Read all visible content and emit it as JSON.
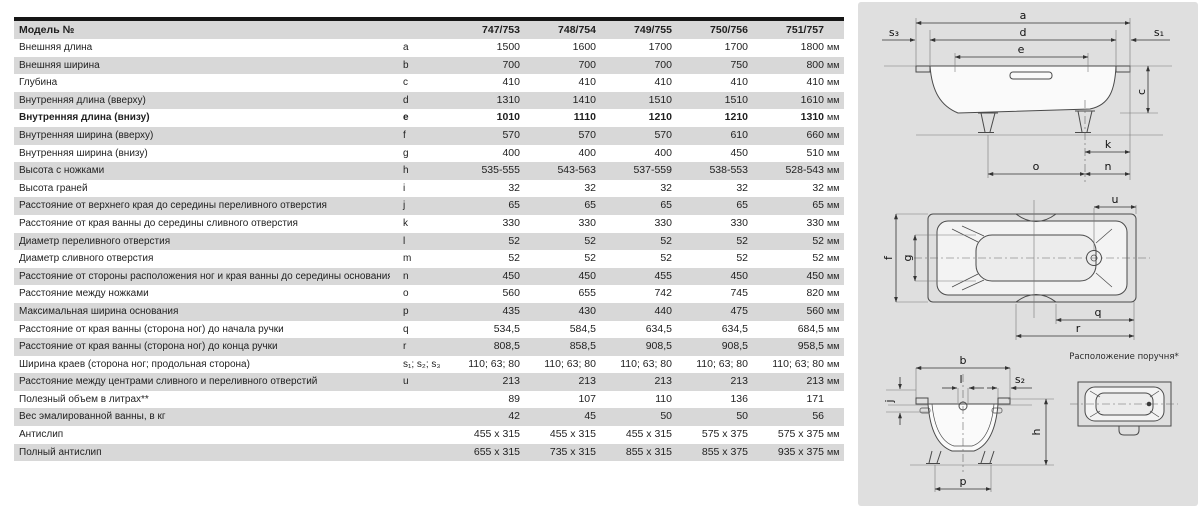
{
  "table": {
    "model_label": "Модель №",
    "models": [
      "747/753",
      "748/754",
      "749/755",
      "750/756",
      "751/757"
    ],
    "rows": [
      {
        "label": "Внешняя длина",
        "letter": "a",
        "values": [
          "1500",
          "1600",
          "1700",
          "1700",
          "1800"
        ],
        "unit": "мм",
        "bold": false
      },
      {
        "label": "Внешняя ширина",
        "letter": "b",
        "values": [
          "700",
          "700",
          "700",
          "750",
          "800"
        ],
        "unit": "мм",
        "bold": false
      },
      {
        "label": "Глубина",
        "letter": "c",
        "values": [
          "410",
          "410",
          "410",
          "410",
          "410"
        ],
        "unit": "мм",
        "bold": false
      },
      {
        "label": "Внутренняя длина (вверху)",
        "letter": "d",
        "values": [
          "1310",
          "1410",
          "1510",
          "1510",
          "1610"
        ],
        "unit": "мм",
        "bold": false
      },
      {
        "label": "Внутренняя длина (внизу)",
        "letter": "e",
        "values": [
          "1010",
          "1110",
          "1210",
          "1210",
          "1310"
        ],
        "unit": "мм",
        "bold": true
      },
      {
        "label": "Внутренняя ширина (вверху)",
        "letter": "f",
        "values": [
          "570",
          "570",
          "570",
          "610",
          "660"
        ],
        "unit": "мм",
        "bold": false
      },
      {
        "label": "Внутренняя ширина (внизу)",
        "letter": "g",
        "values": [
          "400",
          "400",
          "400",
          "450",
          "510"
        ],
        "unit": "мм",
        "bold": false
      },
      {
        "label": "Высота с ножками",
        "letter": "h",
        "values": [
          "535-555",
          "543-563",
          "537-559",
          "538-553",
          "528-543"
        ],
        "unit": "мм",
        "bold": false
      },
      {
        "label": "Высота граней",
        "letter": "i",
        "values": [
          "32",
          "32",
          "32",
          "32",
          "32"
        ],
        "unit": "мм",
        "bold": false
      },
      {
        "label": "Расстояние от верхнего края до середины переливного отверстия",
        "letter": "j",
        "values": [
          "65",
          "65",
          "65",
          "65",
          "65"
        ],
        "unit": "мм",
        "bold": false
      },
      {
        "label": "Расстояние от края ванны до середины сливного отверстия",
        "letter": "k",
        "values": [
          "330",
          "330",
          "330",
          "330",
          "330"
        ],
        "unit": "мм",
        "bold": false
      },
      {
        "label": "Диаметр переливного отверстия",
        "letter": "l",
        "values": [
          "52",
          "52",
          "52",
          "52",
          "52"
        ],
        "unit": "мм",
        "bold": false
      },
      {
        "label": "Диаметр сливного отверстия",
        "letter": "m",
        "values": [
          "52",
          "52",
          "52",
          "52",
          "52"
        ],
        "unit": "мм",
        "bold": false
      },
      {
        "label": "Расстояние от стороны расположения ног и края ванны до середины основания",
        "letter": "n",
        "values": [
          "450",
          "450",
          "455",
          "450",
          "450"
        ],
        "unit": "мм",
        "bold": false
      },
      {
        "label": "Расстояние между ножками",
        "letter": "o",
        "values": [
          "560",
          "655",
          "742",
          "745",
          "820"
        ],
        "unit": "мм",
        "bold": false
      },
      {
        "label": "Максимальная ширина основания",
        "letter": "p",
        "values": [
          "435",
          "430",
          "440",
          "475",
          "560"
        ],
        "unit": "мм",
        "bold": false
      },
      {
        "label": "Расстояние от края ванны (сторона ног) до начала ручки",
        "letter": "q",
        "values": [
          "534,5",
          "584,5",
          "634,5",
          "634,5",
          "684,5"
        ],
        "unit": "мм",
        "bold": false
      },
      {
        "label": "Расстояние от края ванны (сторона ног) до конца ручки",
        "letter": "r",
        "values": [
          "808,5",
          "858,5",
          "908,5",
          "908,5",
          "958,5"
        ],
        "unit": "мм",
        "bold": false
      },
      {
        "label": "Ширина краев (сторона ног; продольная сторона)",
        "letter": "s₁; s₂; s₃",
        "values": [
          "110; 63; 80",
          "110; 63; 80",
          "110; 63; 80",
          "110; 63; 80",
          "110; 63; 80"
        ],
        "unit": "мм",
        "bold": false
      },
      {
        "label": "Расстояние между центрами сливного и переливного отверстий",
        "letter": "u",
        "values": [
          "213",
          "213",
          "213",
          "213",
          "213"
        ],
        "unit": "мм",
        "bold": false
      },
      {
        "label": "Полезный объем в литрах**",
        "letter": "",
        "values": [
          "89",
          "107",
          "110",
          "136",
          "171"
        ],
        "unit": "",
        "bold": false
      },
      {
        "label": "Вес эмалированной ванны, в кг",
        "letter": "",
        "values": [
          "42",
          "45",
          "50",
          "50",
          "56"
        ],
        "unit": "",
        "bold": false
      },
      {
        "label": "Антислип",
        "letter": "",
        "values": [
          "455 x 315",
          "455 x 315",
          "455 x 315",
          "575 x 375",
          "575 x 375"
        ],
        "unit": "мм",
        "bold": false
      },
      {
        "label": "Полный антислип",
        "letter": "",
        "values": [
          "655 x 315",
          "735 x 315",
          "855 x 315",
          "855 x 375",
          "935 x 375"
        ],
        "unit": "мм",
        "bold": false
      }
    ]
  },
  "diagrams": {
    "handle_caption": "Расположение поручня*",
    "labels": {
      "a": "a",
      "d": "d",
      "e": "e",
      "s3": "s₃",
      "s1": "s₁",
      "c": "c",
      "k": "k",
      "o": "o",
      "n": "n",
      "u": "u",
      "f": "f",
      "g": "g",
      "q": "q",
      "r": "r",
      "b": "b",
      "l": "l",
      "s2": "s₂",
      "j": "j",
      "h": "h",
      "p": "p"
    },
    "colors": {
      "panel_bg": "#dfdfdf",
      "stripe": "#d8d8d8",
      "top_bar": "#161616"
    }
  }
}
